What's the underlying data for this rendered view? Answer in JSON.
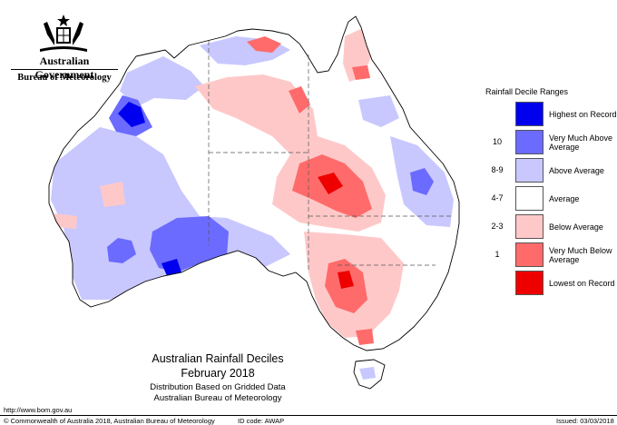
{
  "header": {
    "government_name": "Australian Government",
    "bureau_name": "Bureau of Meteorology",
    "crest_icon": "commonwealth-coat-of-arms-icon"
  },
  "legend": {
    "title": "Rainfall Decile Ranges",
    "items": [
      {
        "value": "",
        "label": "Highest on Record",
        "color": "#0000ee"
      },
      {
        "value": "10",
        "label": "Very Much Above Average",
        "color": "#6b6bff"
      },
      {
        "value": "8-9",
        "label": "Above Average",
        "color": "#c8c8ff"
      },
      {
        "value": "4-7",
        "label": "Average",
        "color": "#ffffff"
      },
      {
        "value": "2-3",
        "label": "Below Average",
        "color": "#ffc8c8"
      },
      {
        "value": "1",
        "label": "Very Much Below Average",
        "color": "#ff6b6b"
      },
      {
        "value": "",
        "label": "Lowest on Record",
        "color": "#ee0000"
      }
    ]
  },
  "caption": {
    "title": "Australian Rainfall Deciles",
    "period": "February 2018",
    "subtitle_1": "Distribution Based on Gridded Data",
    "subtitle_2": "Australian Bureau of Meteorology"
  },
  "footer": {
    "website": "http://www.bom.gov.au",
    "copyright": "© Commonwealth of Australia 2018, Australian Bureau of Meteorology",
    "id_code": "ID code: AWAP",
    "issued": "Issued: 03/03/2018"
  }
}
